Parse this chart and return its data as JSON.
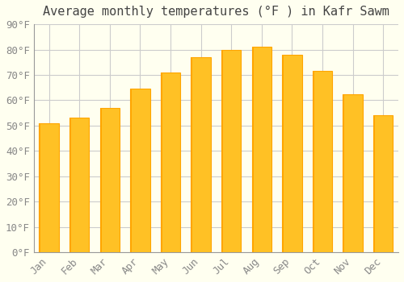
{
  "title": "Average monthly temperatures (°F ) in Kafr Sawm",
  "months": [
    "Jan",
    "Feb",
    "Mar",
    "Apr",
    "May",
    "Jun",
    "Jul",
    "Aug",
    "Sep",
    "Oct",
    "Nov",
    "Dec"
  ],
  "values": [
    51,
    53,
    57,
    64.5,
    71,
    77,
    80,
    81,
    78,
    71.5,
    62.5,
    54
  ],
  "bar_color_main": "#FFC125",
  "bar_color_edge": "#FFA500",
  "background_color": "#FFFFF0",
  "grid_color": "#CCCCCC",
  "ytick_labels": [
    "0°F",
    "10°F",
    "20°F",
    "30°F",
    "40°F",
    "50°F",
    "60°F",
    "70°F",
    "80°F",
    "90°F"
  ],
  "ytick_values": [
    0,
    10,
    20,
    30,
    40,
    50,
    60,
    70,
    80,
    90
  ],
  "ylim": [
    0,
    90
  ],
  "title_fontsize": 11,
  "tick_fontsize": 9,
  "tick_color": "#888888",
  "title_color": "#444444"
}
